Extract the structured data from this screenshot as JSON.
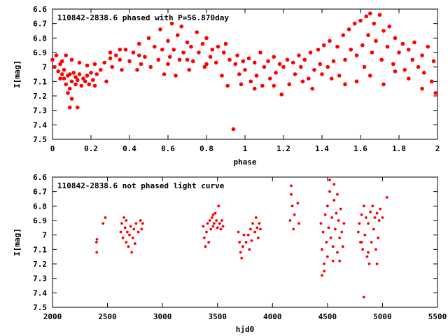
{
  "chart_data": [
    {
      "type": "scatter",
      "title": "110842-2838.6 phased with P=56.870day",
      "xlabel": "phase",
      "ylabel": "I[mag]",
      "xlim": [
        0,
        2
      ],
      "ylim": [
        6.6,
        7.5
      ],
      "y_inverted": true,
      "xticks": [
        "0",
        "0.2",
        "0.4",
        "0.6",
        "0.8",
        "1",
        "1.2",
        "1.4",
        "1.6",
        "1.8",
        "2"
      ],
      "yticks": [
        "6.6",
        "6.7",
        "6.8",
        "6.9",
        "7",
        "7.1",
        "7.2",
        "7.3",
        "7.4",
        "7.5"
      ],
      "marker": "filled-circle",
      "color": "#ff0000",
      "grid": false,
      "points": [
        [
          0.0,
          6.95
        ],
        [
          0.01,
          7.0
        ],
        [
          0.02,
          6.92
        ],
        [
          0.03,
          7.03
        ],
        [
          0.04,
          6.98
        ],
        [
          0.05,
          7.05
        ],
        [
          0.06,
          7.08
        ],
        [
          0.06,
          7.02
        ],
        [
          0.07,
          7.12
        ],
        [
          0.08,
          7.06
        ],
        [
          0.09,
          7.15
        ],
        [
          0.09,
          7.05
        ],
        [
          0.1,
          7.1
        ],
        [
          0.11,
          7.04
        ],
        [
          0.12,
          7.12
        ],
        [
          0.12,
          7.07
        ],
        [
          0.13,
          7.09
        ],
        [
          0.14,
          7.05
        ],
        [
          0.15,
          7.13
        ],
        [
          0.16,
          7.08
        ],
        [
          0.17,
          7.1
        ],
        [
          0.18,
          7.06
        ],
        [
          0.19,
          7.12
        ],
        [
          0.2,
          7.04
        ],
        [
          0.21,
          7.09
        ],
        [
          0.22,
          7.13
        ],
        [
          0.23,
          7.05
        ],
        [
          0.08,
          7.18
        ],
        [
          0.1,
          7.22
        ],
        [
          0.09,
          7.28
        ],
        [
          0.13,
          7.28
        ],
        [
          0.04,
          7.08
        ],
        [
          0.05,
          6.96
        ],
        [
          0.07,
          6.92
        ],
        [
          0.1,
          6.95
        ],
        [
          0.14,
          6.97
        ],
        [
          0.18,
          6.99
        ],
        [
          0.22,
          6.98
        ],
        [
          0.25,
          7.02
        ],
        [
          0.27,
          6.97
        ],
        [
          0.28,
          7.1
        ],
        [
          0.3,
          6.94
        ],
        [
          0.31,
          7.0
        ],
        [
          0.33,
          6.92
        ],
        [
          0.35,
          6.95
        ],
        [
          0.36,
          7.02
        ],
        [
          0.38,
          6.88
        ],
        [
          0.4,
          6.96
        ],
        [
          0.42,
          6.9
        ],
        [
          0.44,
          7.02
        ],
        [
          0.45,
          6.84
        ],
        [
          0.46,
          6.98
        ],
        [
          0.48,
          6.93
        ],
        [
          0.5,
          6.8
        ],
        [
          0.51,
          7.0
        ],
        [
          0.53,
          6.86
        ],
        [
          0.55,
          6.95
        ],
        [
          0.56,
          6.74
        ],
        [
          0.57,
          6.88
        ],
        [
          0.58,
          7.05
        ],
        [
          0.6,
          6.82
        ],
        [
          0.61,
          6.93
        ],
        [
          0.62,
          6.7
        ],
        [
          0.63,
          6.88
        ],
        [
          0.64,
          7.06
        ],
        [
          0.65,
          6.78
        ],
        [
          0.66,
          6.95
        ],
        [
          0.67,
          6.72
        ],
        [
          0.68,
          6.9
        ],
        [
          0.7,
          6.83
        ],
        [
          0.71,
          7.02
        ],
        [
          0.72,
          6.86
        ],
        [
          0.73,
          6.96
        ],
        [
          0.75,
          6.76
        ],
        [
          0.76,
          6.9
        ],
        [
          0.78,
          6.84
        ],
        [
          0.79,
          7.0
        ],
        [
          0.8,
          6.8
        ],
        [
          0.82,
          6.93
        ],
        [
          0.83,
          6.88
        ],
        [
          0.85,
          6.97
        ],
        [
          0.86,
          6.86
        ],
        [
          0.88,
          7.06
        ],
        [
          0.89,
          6.9
        ],
        [
          0.9,
          6.84
        ],
        [
          0.91,
          7.13
        ],
        [
          0.92,
          6.95
        ],
        [
          0.94,
          7.43
        ],
        [
          0.95,
          6.98
        ],
        [
          0.96,
          6.92
        ],
        [
          0.97,
          7.05
        ],
        [
          0.99,
          6.96
        ],
        [
          1.0,
          7.02
        ],
        [
          1.02,
          6.94
        ],
        [
          1.03,
          7.1
        ],
        [
          1.05,
          6.97
        ],
        [
          1.06,
          7.06
        ],
        [
          1.08,
          6.9
        ],
        [
          1.09,
          7.13
        ],
        [
          1.1,
          7.0
        ],
        [
          1.12,
          6.96
        ],
        [
          1.13,
          7.08
        ],
        [
          1.15,
          6.93
        ],
        [
          1.16,
          7.04
        ],
        [
          1.18,
          6.98
        ],
        [
          1.19,
          7.19
        ],
        [
          1.2,
          7.0
        ],
        [
          1.22,
          6.95
        ],
        [
          1.23,
          7.12
        ],
        [
          1.25,
          6.97
        ],
        [
          1.26,
          7.05
        ],
        [
          1.28,
          6.92
        ],
        [
          1.29,
          7.0
        ],
        [
          1.31,
          6.95
        ],
        [
          1.33,
          7.08
        ],
        [
          1.34,
          6.9
        ],
        [
          1.36,
          7.02
        ],
        [
          1.38,
          6.88
        ],
        [
          1.39,
          6.98
        ],
        [
          1.41,
          6.85
        ],
        [
          1.43,
          7.0
        ],
        [
          1.44,
          6.82
        ],
        [
          1.46,
          6.96
        ],
        [
          1.48,
          6.86
        ],
        [
          1.49,
          7.06
        ],
        [
          1.51,
          6.78
        ],
        [
          1.52,
          6.95
        ],
        [
          1.54,
          6.74
        ],
        [
          1.55,
          6.88
        ],
        [
          1.57,
          6.7
        ],
        [
          1.58,
          6.92
        ],
        [
          1.6,
          6.68
        ],
        [
          1.61,
          6.85
        ],
        [
          1.62,
          7.0
        ],
        [
          1.63,
          6.65
        ],
        [
          1.64,
          6.78
        ],
        [
          1.65,
          6.63
        ],
        [
          1.66,
          6.9
        ],
        [
          1.67,
          6.7
        ],
        [
          1.68,
          6.82
        ],
        [
          1.7,
          6.64
        ],
        [
          1.71,
          6.95
        ],
        [
          1.72,
          6.75
        ],
        [
          1.74,
          6.86
        ],
        [
          1.75,
          6.72
        ],
        [
          1.77,
          6.98
        ],
        [
          1.78,
          6.8
        ],
        [
          1.8,
          6.9
        ],
        [
          1.82,
          6.84
        ],
        [
          1.83,
          7.02
        ],
        [
          1.85,
          6.88
        ],
        [
          1.87,
          6.95
        ],
        [
          1.88,
          6.83
        ],
        [
          1.9,
          7.0
        ],
        [
          1.92,
          6.92
        ],
        [
          1.93,
          7.04
        ],
        [
          1.95,
          6.86
        ],
        [
          1.97,
          7.1
        ],
        [
          1.98,
          6.96
        ],
        [
          1.99,
          7.18
        ],
        [
          1.4,
          7.05
        ],
        [
          1.45,
          7.08
        ],
        [
          1.52,
          7.12
        ],
        [
          1.58,
          7.1
        ],
        [
          1.65,
          7.06
        ],
        [
          1.72,
          7.12
        ],
        [
          1.78,
          7.03
        ],
        [
          1.85,
          7.08
        ],
        [
          1.92,
          7.15
        ],
        [
          1.35,
          7.15
        ],
        [
          1.3,
          7.1
        ],
        [
          1.15,
          7.13
        ],
        [
          1.05,
          7.15
        ],
        [
          0.98,
          7.12
        ],
        [
          0.6,
          6.98
        ],
        [
          0.7,
          6.95
        ],
        [
          0.8,
          6.98
        ],
        [
          0.45,
          6.92
        ],
        [
          0.35,
          6.88
        ],
        [
          0.3,
          6.9
        ]
      ]
    },
    {
      "type": "scatter",
      "title": "110842-2838.6 not phased light curve",
      "xlabel": "hjd0",
      "ylabel": "I[mag]",
      "xlim": [
        2000,
        5500
      ],
      "ylim": [
        6.6,
        7.5
      ],
      "y_inverted": true,
      "xticks": [
        "2000",
        "2500",
        "3000",
        "3500",
        "4000",
        "4500",
        "5000",
        "5500"
      ],
      "yticks": [
        "6.6",
        "6.7",
        "6.8",
        "6.9",
        "7",
        "7.1",
        "7.2",
        "7.3",
        "7.4",
        "7.5"
      ],
      "marker": "filled-circle",
      "color": "#ff0000",
      "grid": false,
      "points": [
        [
          2400,
          7.05
        ],
        [
          2402,
          7.12
        ],
        [
          2404,
          7.03
        ],
        [
          2460,
          6.92
        ],
        [
          2480,
          6.88
        ],
        [
          2620,
          6.98
        ],
        [
          2630,
          6.92
        ],
        [
          2640,
          7.02
        ],
        [
          2650,
          6.88
        ],
        [
          2660,
          6.95
        ],
        [
          2670,
          7.05
        ],
        [
          2680,
          6.98
        ],
        [
          2690,
          7.08
        ],
        [
          2700,
          7.0
        ],
        [
          2710,
          6.94
        ],
        [
          2720,
          7.12
        ],
        [
          2730,
          7.02
        ],
        [
          2740,
          6.96
        ],
        [
          2750,
          7.06
        ],
        [
          2760,
          6.92
        ],
        [
          2780,
          6.98
        ],
        [
          2800,
          6.9
        ],
        [
          2810,
          6.96
        ],
        [
          2820,
          6.92
        ],
        [
          2670,
          6.9
        ],
        [
          3370,
          6.94
        ],
        [
          3380,
          7.02
        ],
        [
          3390,
          7.08
        ],
        [
          3400,
          6.98
        ],
        [
          3410,
          6.92
        ],
        [
          3420,
          7.05
        ],
        [
          3430,
          6.9
        ],
        [
          3440,
          6.96
        ],
        [
          3450,
          6.88
        ],
        [
          3460,
          6.94
        ],
        [
          3470,
          6.92
        ],
        [
          3480,
          6.85
        ],
        [
          3490,
          6.9
        ],
        [
          3500,
          6.95
        ],
        [
          3510,
          6.8
        ],
        [
          3520,
          6.92
        ],
        [
          3530,
          6.96
        ],
        [
          3540,
          6.9
        ],
        [
          3550,
          6.94
        ],
        [
          3460,
          6.86
        ],
        [
          3690,
          6.98
        ],
        [
          3700,
          7.05
        ],
        [
          3710,
          7.12
        ],
        [
          3720,
          7.16
        ],
        [
          3730,
          7.08
        ],
        [
          3740,
          7.0
        ],
        [
          3760,
          7.05
        ],
        [
          3780,
          7.0
        ],
        [
          3790,
          7.1
        ],
        [
          3800,
          6.96
        ],
        [
          3810,
          7.04
        ],
        [
          3820,
          6.92
        ],
        [
          3840,
          6.98
        ],
        [
          3850,
          6.88
        ],
        [
          3860,
          6.95
        ],
        [
          3870,
          7.02
        ],
        [
          3880,
          6.92
        ],
        [
          3890,
          6.96
        ],
        [
          4160,
          6.9
        ],
        [
          4170,
          6.72
        ],
        [
          4180,
          6.8
        ],
        [
          4190,
          6.96
        ],
        [
          4200,
          6.86
        ],
        [
          4230,
          6.78
        ],
        [
          4240,
          6.92
        ],
        [
          4170,
          6.66
        ],
        [
          4440,
          6.92
        ],
        [
          4450,
          7.1
        ],
        [
          4460,
          6.98
        ],
        [
          4470,
          7.2
        ],
        [
          4480,
          6.86
        ],
        [
          4490,
          7.05
        ],
        [
          4500,
          6.8
        ],
        [
          4510,
          6.95
        ],
        [
          4520,
          6.7
        ],
        [
          4530,
          7.02
        ],
        [
          4540,
          6.88
        ],
        [
          4550,
          7.08
        ],
        [
          4560,
          6.76
        ],
        [
          4570,
          6.96
        ],
        [
          4580,
          6.85
        ],
        [
          4590,
          7.12
        ],
        [
          4600,
          6.9
        ],
        [
          4610,
          7.02
        ],
        [
          4620,
          6.82
        ],
        [
          4630,
          6.98
        ],
        [
          4640,
          7.08
        ],
        [
          4650,
          6.92
        ],
        [
          4520,
          6.62
        ],
        [
          4560,
          6.65
        ],
        [
          4590,
          6.72
        ],
        [
          4450,
          7.28
        ],
        [
          4470,
          7.25
        ],
        [
          4550,
          7.18
        ],
        [
          4500,
          7.15
        ],
        [
          4610,
          7.18
        ],
        [
          4780,
          6.98
        ],
        [
          4790,
          6.92
        ],
        [
          4800,
          7.05
        ],
        [
          4810,
          6.86
        ],
        [
          4820,
          7.1
        ],
        [
          4830,
          6.8
        ],
        [
          4840,
          7.0
        ],
        [
          4850,
          6.88
        ],
        [
          4860,
          7.15
        ],
        [
          4870,
          6.92
        ],
        [
          4880,
          7.2
        ],
        [
          4890,
          6.84
        ],
        [
          4900,
          7.05
        ],
        [
          4910,
          6.8
        ],
        [
          4920,
          6.96
        ],
        [
          4930,
          6.88
        ],
        [
          4940,
          7.1
        ],
        [
          4950,
          6.85
        ],
        [
          4960,
          7.02
        ],
        [
          4970,
          6.9
        ],
        [
          4980,
          6.82
        ],
        [
          5000,
          6.88
        ],
        [
          4830,
          7.43
        ],
        [
          4950,
          7.2
        ],
        [
          4870,
          7.12
        ],
        [
          5040,
          6.74
        ],
        [
          4810,
          7.05
        ]
      ]
    }
  ]
}
